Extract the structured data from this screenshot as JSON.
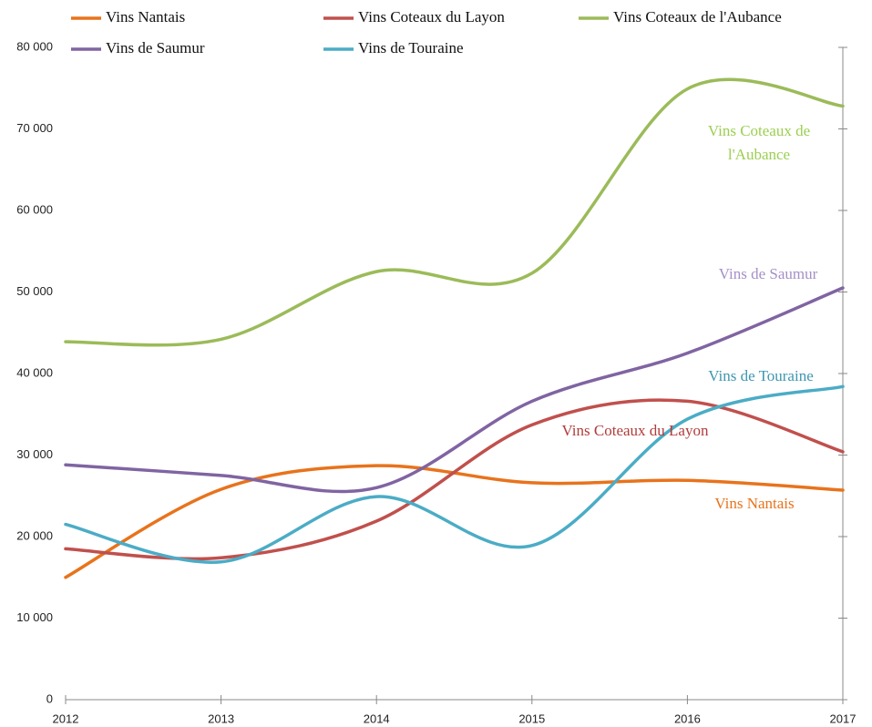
{
  "chart_data": {
    "type": "line",
    "x": [
      2012,
      2013,
      2014,
      2015,
      2016,
      2017
    ],
    "xlim": [
      2012,
      2017
    ],
    "xticks": [
      2012,
      2013,
      2014,
      2015,
      2016,
      2017
    ],
    "ylim": [
      0,
      80000
    ],
    "yticks": [
      0,
      {
        "value": 10000,
        "label": "10 000"
      },
      {
        "value": 20000,
        "label": "20 000"
      },
      {
        "value": 30000,
        "label": "30 000"
      },
      {
        "value": 40000,
        "label": "40 000"
      },
      {
        "value": 50000,
        "label": "50 000"
      },
      {
        "value": 60000,
        "label": "60 000"
      },
      {
        "value": 70000,
        "label": "70 000"
      },
      {
        "value": 80000,
        "label": "80 000"
      }
    ],
    "smooth": true,
    "series": [
      {
        "name": "Vins Nantais",
        "color": "#e8731c",
        "values": [
          15000,
          25800,
          28700,
          26600,
          26900,
          25700
        ]
      },
      {
        "name": "Vins Coteaux du Layon",
        "color": "#c0504d",
        "values": [
          18500,
          17400,
          21900,
          33700,
          36600,
          30400
        ]
      },
      {
        "name": "Vins Coteaux de l'Aubance",
        "color": "#9bbb59",
        "values": [
          43900,
          44200,
          52500,
          52300,
          74900,
          72800
        ]
      },
      {
        "name": "Vins de Saumur",
        "color": "#8064a2",
        "values": [
          28800,
          27500,
          26000,
          36600,
          42500,
          50500
        ]
      },
      {
        "name": "Vins de Touraine",
        "color": "#4bacc6",
        "values": [
          21500,
          16900,
          24900,
          18900,
          34400,
          38400
        ]
      }
    ],
    "annotations": [
      "Vins Coteaux de",
      "l'Aubance",
      "Vins de Saumur",
      "Vins de Touraine",
      "Vins Coteaux du Layon",
      "Vins Nantais"
    ]
  }
}
